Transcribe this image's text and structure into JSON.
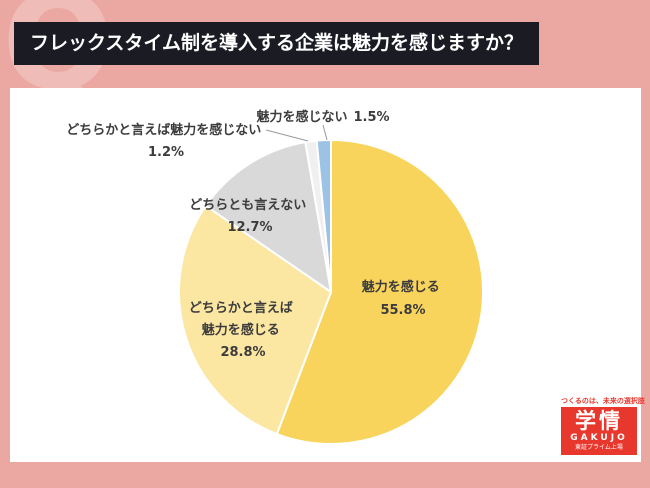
{
  "page": {
    "watermark": "Q",
    "title": "フレックスタイム制を導入する企業は魅力を感じますか？"
  },
  "colors": {
    "background": "#EBA8A2",
    "title_bar": "#1B1B24",
    "panel": "#FFFFFF",
    "logo_red": "#E8382D"
  },
  "chart_data": {
    "type": "pie",
    "title": "フレックスタイム制を導入する企業は魅力を感じますか？",
    "legend_position": "none",
    "start_angle": "top",
    "direction": "clockwise",
    "segments": [
      {
        "label_lines": [
          "魅力を感じる"
        ],
        "pct_label": "55.8%",
        "value": 55.8,
        "color": "#F9D45C"
      },
      {
        "label_lines": [
          "どちらかと言えば",
          "魅力を感じる"
        ],
        "pct_label": "28.8%",
        "value": 28.8,
        "color": "#FBE6A2"
      },
      {
        "label_lines": [
          "どちらとも言えない"
        ],
        "pct_label": "12.7%",
        "value": 12.7,
        "color": "#D9D9D9"
      },
      {
        "label_lines": [
          "どちらかと言えば魅力を感じない"
        ],
        "pct_label": "1.2%",
        "value": 1.2,
        "color": "#F0F0F0"
      },
      {
        "label_lines": [
          "魅力を感じない"
        ],
        "pct_label": "1.5%",
        "value": 1.5,
        "color": "#9CC2E5"
      }
    ]
  },
  "logo": {
    "tagline": "つくるのは、未来の選択肢",
    "name_jp": "学情",
    "name_en": "GAKUJO",
    "listing": "東証プライム上場"
  }
}
